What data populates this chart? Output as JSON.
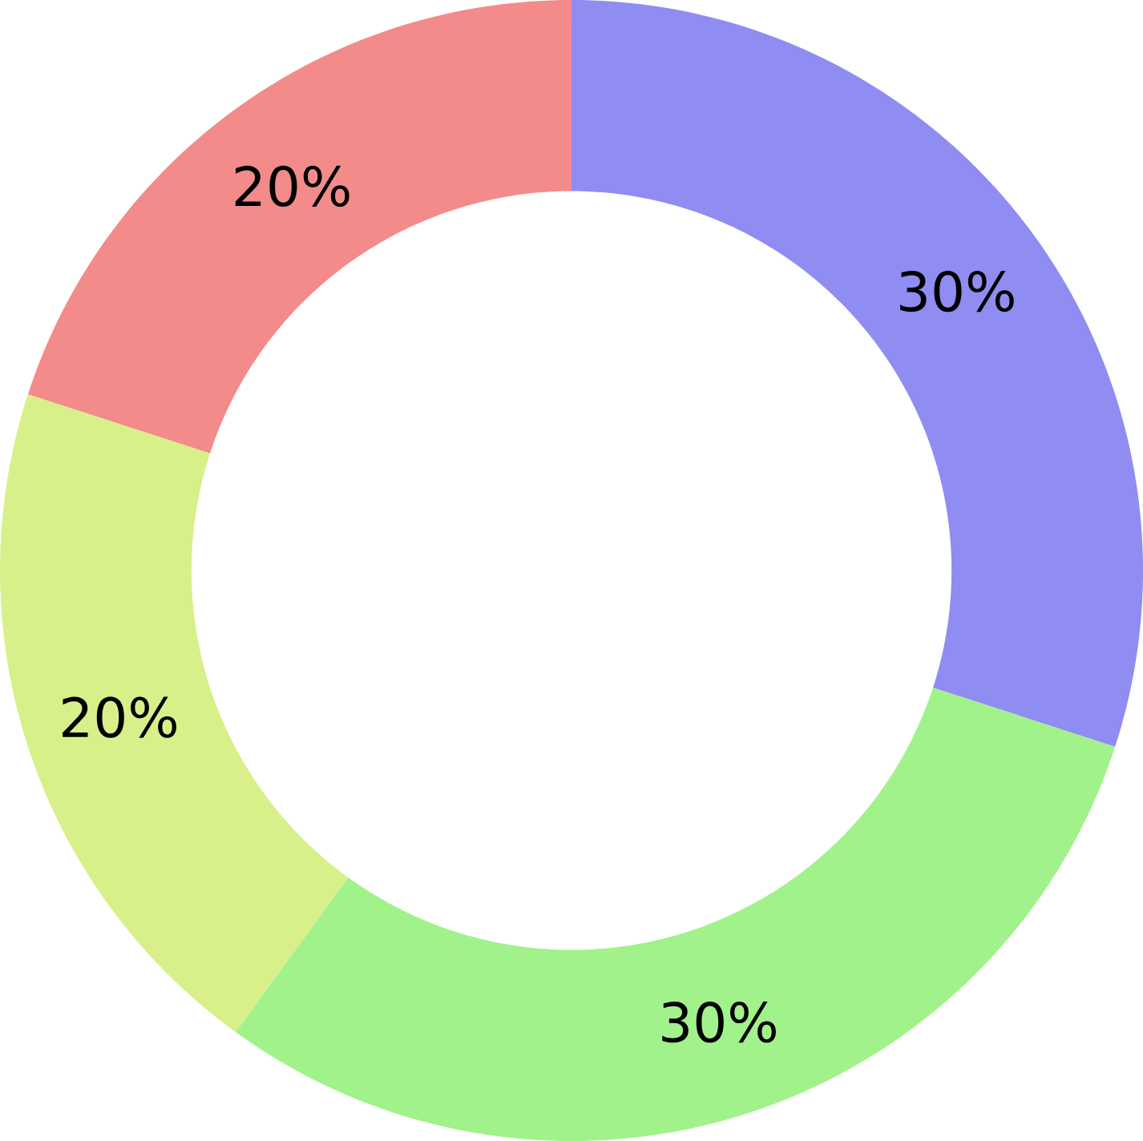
{
  "chart_data": {
    "type": "donut",
    "categories": [
      null,
      null,
      null,
      null
    ],
    "values": [
      30,
      30,
      20,
      20
    ],
    "colors": [
      "#8f8cf2",
      "#a1f28a",
      "#d8f08a",
      "#f28b8a"
    ],
    "value_labels": [
      "30%",
      "30%",
      "20%",
      "20%"
    ]
  }
}
